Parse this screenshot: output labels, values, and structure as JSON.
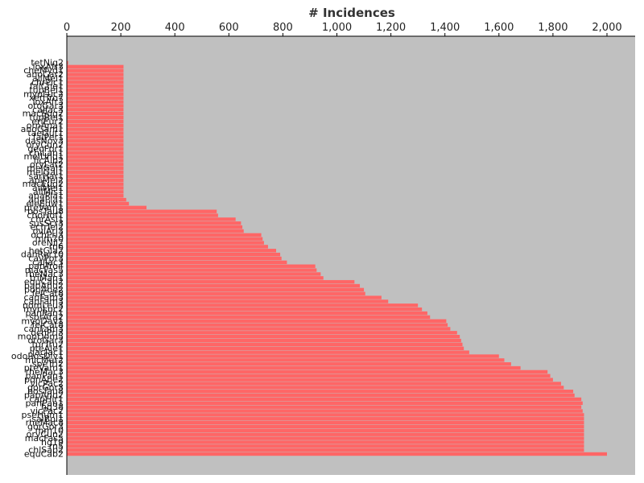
{
  "chart_data": {
    "type": "bar",
    "orientation": "horizontal",
    "title": "# Incidences",
    "xlabel": "",
    "ylabel": "",
    "xlim": [
      0,
      2100
    ],
    "x_ticks": [
      "0",
      "200",
      "400",
      "600",
      "800",
      "1,000",
      "1,200",
      "1,400",
      "1,600",
      "1,800",
      "2,000"
    ],
    "x_tick_values": [
      0,
      200,
      400,
      600,
      800,
      1000,
      1200,
      1400,
      1600,
      1800,
      2000
    ],
    "x_axis_position": "top",
    "grid": false,
    "categories": [
      "tetNig2",
      "loxAfr3",
      "cheMyd1",
      "anoCar2",
      "ailMel1",
      "chrPic1",
      "falChe1",
      "tupBel1",
      "myoLuc2",
      "xenTro7",
      "loxAfr3",
      "otoGar3",
      "calJac3",
      "macEug2",
      "tupBel1",
      "eriEur2",
      "ornAna1",
      "anoGam1",
      "taeGut1",
      "falPer1",
      "dasNov3",
      "oryCun2",
      "geoFor1",
      "chiLan1",
      "melUnd1",
      "ficAlb2",
      "oryLat2",
      "melGal1",
      "melGal1",
      "sarHar1",
      "apiMel2",
      "macEug2",
      "ailMel1",
      "allMis1",
      "anaPla1",
      "anaPla1",
      "eleEdw1",
      "pteVam1",
      "bosTau8",
      "choHof1",
      "chrAsi1",
      "susScr3",
      "echTel2",
      "oviAri3",
      "ochPri3",
      "mm10",
      "oreNil2",
      "rn6",
      "hetGla2",
      "danRer10",
      "cavPor3",
      "calJac3",
      "panTro4",
      "macFas5",
      "rheMac3",
      "triMan1",
      "equCab2",
      "papAnu2",
      "ponAbe2",
      "felCat8",
      "canFam3",
      "canFam3",
      "nomLeu3",
      "myoLuc2",
      "panPan1",
      "sorAra2",
      "myoDav1",
      "felCat8",
      "canFam3",
      "ochPri3",
      "monDom5",
      "otoGar3",
      "turTru2",
      "pteAle1",
      "jacJac1",
      "odoRosDiv1",
      "micMur2",
      "speTri2",
      "pteVam1",
      "rheMac3",
      "panPan1",
      "ponAbe2",
      "vicPac2",
      "gorGor3",
      "bosTau8",
      "papAnu2",
      "capHir1",
      "panPan1",
      "hg38",
      "vicPac2",
      "pseHum1",
      "saiBol1",
      "rheMac8",
      "gorGor3",
      "mm10",
      "oryCun2",
      "macFas5",
      "hg19",
      "rn5",
      "chlSab2",
      "equCab2"
    ],
    "values": [
      5,
      210,
      210,
      210,
      210,
      210,
      210,
      210,
      210,
      210,
      210,
      210,
      210,
      210,
      210,
      210,
      210,
      210,
      210,
      210,
      210,
      210,
      210,
      210,
      210,
      210,
      210,
      210,
      210,
      210,
      210,
      210,
      210,
      210,
      210,
      220,
      230,
      295,
      555,
      560,
      625,
      645,
      650,
      655,
      720,
      725,
      730,
      745,
      775,
      790,
      795,
      815,
      920,
      925,
      940,
      950,
      1065,
      1085,
      1100,
      1105,
      1165,
      1190,
      1300,
      1315,
      1335,
      1345,
      1405,
      1410,
      1420,
      1445,
      1455,
      1460,
      1465,
      1470,
      1490,
      1600,
      1620,
      1645,
      1680,
      1780,
      1790,
      1800,
      1830,
      1840,
      1875,
      1880,
      1905,
      1910,
      1905,
      1910,
      1915,
      1915,
      1915,
      1915,
      1915,
      1915,
      1915,
      1915,
      1915,
      1915,
      2000
    ]
  },
  "colors": {
    "bar": "#ff6666",
    "plot_background": "#c0c0c0",
    "axis": "#000000"
  }
}
